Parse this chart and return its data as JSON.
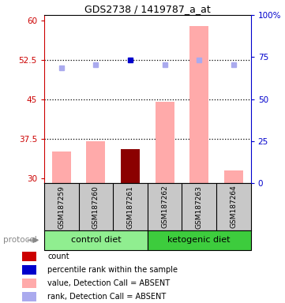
{
  "title": "GDS2738 / 1419787_a_at",
  "samples": [
    "GSM187259",
    "GSM187260",
    "GSM187261",
    "GSM187262",
    "GSM187263",
    "GSM187264"
  ],
  "groups": [
    {
      "name": "control diet",
      "indices": [
        0,
        1,
        2
      ],
      "color": "#90ee90"
    },
    {
      "name": "ketogenic diet",
      "indices": [
        3,
        4,
        5
      ],
      "color": "#3dcc3d"
    }
  ],
  "bar_values": [
    35.0,
    37.0,
    35.5,
    44.5,
    59.0,
    31.5
  ],
  "bar_colors": [
    "#ffaaaa",
    "#ffaaaa",
    "#8b0000",
    "#ffaaaa",
    "#ffaaaa",
    "#ffaaaa"
  ],
  "dot_values": [
    51.0,
    51.5,
    52.5,
    51.5,
    52.5,
    51.5
  ],
  "dot_colors": [
    "#aaaaee",
    "#aaaaee",
    "#0000cc",
    "#aaaaee",
    "#aaaaee",
    "#aaaaee"
  ],
  "ylim_left": [
    29,
    61
  ],
  "ylim_right": [
    0,
    100
  ],
  "yticks_left": [
    30,
    37.5,
    45,
    52.5,
    60
  ],
  "yticks_right": [
    0,
    25,
    50,
    75,
    100
  ],
  "ytick_labels_left": [
    "30",
    "37.5",
    "45",
    "52.5",
    "60"
  ],
  "ytick_labels_right": [
    "0",
    "25",
    "50",
    "75",
    "100%"
  ],
  "dotted_lines": [
    37.5,
    45.0,
    52.5
  ],
  "protocol_label": "protocol",
  "left_axis_color": "#cc0000",
  "right_axis_color": "#0000cc",
  "bar_width": 0.55,
  "legend_items": [
    {
      "color": "#cc0000",
      "label": "count"
    },
    {
      "color": "#0000cc",
      "label": "percentile rank within the sample"
    },
    {
      "color": "#ffaaaa",
      "label": "value, Detection Call = ABSENT"
    },
    {
      "color": "#aaaaee",
      "label": "rank, Detection Call = ABSENT"
    }
  ],
  "bg_color": "#c8c8c8",
  "fig_width": 3.61,
  "fig_height": 3.84,
  "dpi": 100
}
